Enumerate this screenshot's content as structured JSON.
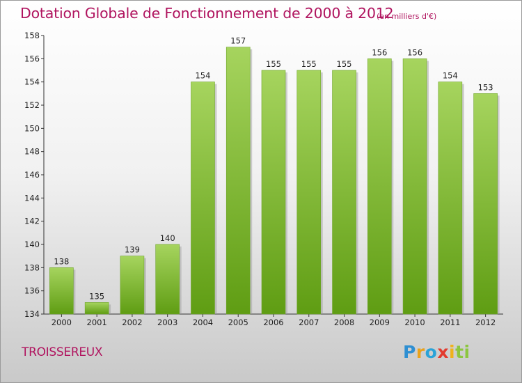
{
  "chart_data": {
    "type": "bar",
    "title": "Dotation Globale de Fonctionnement de 2000 à 2012",
    "unit": "(en milliers d'€)",
    "categories": [
      "2000",
      "2001",
      "2002",
      "2003",
      "2004",
      "2005",
      "2006",
      "2007",
      "2008",
      "2009",
      "2010",
      "2011",
      "2012"
    ],
    "values": [
      138,
      135,
      139,
      140,
      154,
      157,
      155,
      155,
      155,
      156,
      156,
      154,
      153
    ],
    "ylim": [
      134,
      158
    ],
    "yticks": [
      134,
      136,
      138,
      140,
      142,
      144,
      146,
      148,
      150,
      152,
      154,
      156,
      158
    ],
    "grid": false,
    "colors": {
      "bar_light": "#a6d45e",
      "bar_dark": "#5f9d13",
      "title": "#b0145f"
    }
  },
  "commune": "TROISSEREUX",
  "logo": {
    "parts": [
      "P",
      "r",
      "o",
      "x",
      "i",
      "ti"
    ]
  }
}
